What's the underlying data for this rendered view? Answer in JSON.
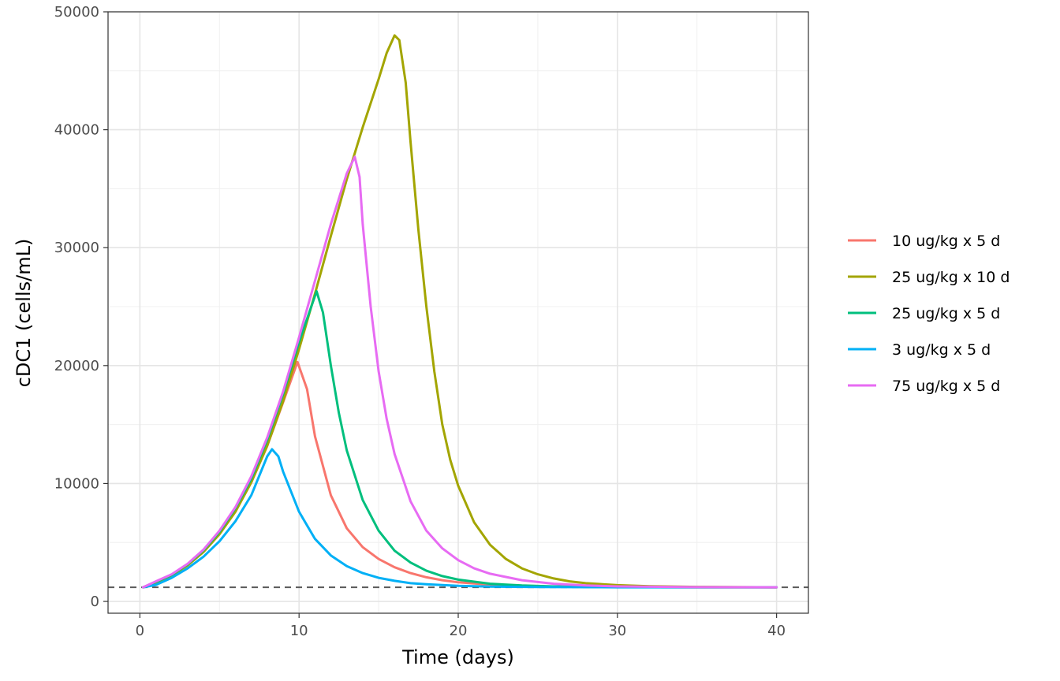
{
  "chart_data": {
    "type": "line",
    "title": "",
    "xlabel": "Time (days)",
    "ylabel": "cDC1 (cells/mL)",
    "xlim": [
      -2,
      42
    ],
    "ylim": [
      -1000,
      50000
    ],
    "x_ticks": [
      0,
      10,
      20,
      30,
      40
    ],
    "x_tick_labels": [
      "0",
      "10",
      "20",
      "30",
      "40"
    ],
    "y_ticks": [
      0,
      10000,
      20000,
      30000,
      40000,
      50000
    ],
    "y_tick_labels": [
      "0",
      "10000",
      "20000",
      "30000",
      "40000",
      "50000"
    ],
    "grid": true,
    "legend_position": "right",
    "baseline": {
      "y": 1200,
      "style": "dashed",
      "color": "#595959"
    },
    "series": [
      {
        "name": "10 ug/kg x 5 d",
        "color": "#F8766D",
        "x": [
          0.2,
          1,
          2,
          3,
          4,
          5,
          6,
          7,
          8,
          9,
          9.9,
          10.5,
          11,
          12,
          13,
          14,
          15,
          16,
          17,
          18,
          19,
          20,
          22,
          24,
          26,
          28,
          30,
          35,
          40
        ],
        "y": [
          1200,
          1650,
          2250,
          3100,
          4300,
          5800,
          7700,
          10100,
          13200,
          16900,
          20300,
          18000,
          14000,
          9000,
          6200,
          4600,
          3600,
          2900,
          2400,
          2050,
          1800,
          1620,
          1420,
          1320,
          1260,
          1230,
          1210,
          1200,
          1200
        ]
      },
      {
        "name": "25 ug/kg x 10 d",
        "color": "#A3A500",
        "x": [
          0.2,
          1,
          2,
          3,
          4,
          5,
          6,
          7,
          8,
          9,
          10,
          11,
          12,
          13,
          14,
          15,
          15.5,
          16,
          16.3,
          16.7,
          17,
          17.5,
          18,
          18.5,
          19,
          19.5,
          20,
          21,
          22,
          23,
          24,
          25,
          26,
          27,
          28,
          30,
          32,
          35,
          40
        ],
        "y": [
          1200,
          1600,
          2200,
          3050,
          4200,
          5700,
          7600,
          10100,
          13200,
          17000,
          21400,
          26100,
          31000,
          35800,
          40200,
          44300,
          46500,
          48000,
          47600,
          44000,
          39000,
          31500,
          25000,
          19500,
          15000,
          12000,
          9800,
          6700,
          4800,
          3600,
          2800,
          2300,
          1950,
          1700,
          1550,
          1380,
          1290,
          1230,
          1200
        ]
      },
      {
        "name": "25 ug/kg x 5 d",
        "color": "#00BF7D",
        "x": [
          0.2,
          1,
          2,
          3,
          4,
          5,
          6,
          7,
          8,
          9,
          10,
          11.1,
          11.5,
          12,
          12.5,
          13,
          14,
          15,
          16,
          17,
          18,
          19,
          20,
          22,
          24,
          26,
          28,
          30,
          35,
          40
        ],
        "y": [
          1200,
          1650,
          2250,
          3150,
          4350,
          5900,
          7900,
          10400,
          13700,
          17600,
          22000,
          26300,
          24500,
          20000,
          16000,
          12800,
          8600,
          6000,
          4300,
          3300,
          2600,
          2150,
          1850,
          1500,
          1350,
          1270,
          1230,
          1210,
          1200,
          1200
        ]
      },
      {
        "name": "3 ug/kg x 5 d",
        "color": "#00B0F6",
        "x": [
          0.2,
          1,
          2,
          3,
          4,
          5,
          6,
          7,
          8,
          8.3,
          8.7,
          9,
          10,
          11,
          12,
          13,
          14,
          15,
          16,
          17,
          18,
          20,
          22,
          25,
          30,
          35,
          40
        ],
        "y": [
          1200,
          1400,
          2000,
          2800,
          3800,
          5100,
          6800,
          9000,
          12300,
          12900,
          12300,
          11000,
          7600,
          5300,
          3900,
          3000,
          2400,
          2000,
          1750,
          1550,
          1450,
          1320,
          1260,
          1220,
          1200,
          1200,
          1200
        ]
      },
      {
        "name": "75 ug/kg x 5 d",
        "color": "#E76BF3",
        "x": [
          0.2,
          1,
          2,
          3,
          4,
          5,
          6,
          7,
          8,
          9,
          10,
          11,
          12,
          13,
          13.5,
          13.8,
          14,
          14.5,
          15,
          15.5,
          16,
          17,
          18,
          19,
          20,
          21,
          22,
          24,
          26,
          28,
          30,
          35,
          40
        ],
        "y": [
          1200,
          1700,
          2300,
          3200,
          4400,
          6000,
          8000,
          10600,
          13900,
          17800,
          22400,
          27200,
          32000,
          36300,
          37700,
          36000,
          32000,
          25000,
          19500,
          15500,
          12500,
          8500,
          6000,
          4500,
          3500,
          2800,
          2350,
          1800,
          1500,
          1350,
          1270,
          1210,
          1200
        ]
      }
    ]
  }
}
